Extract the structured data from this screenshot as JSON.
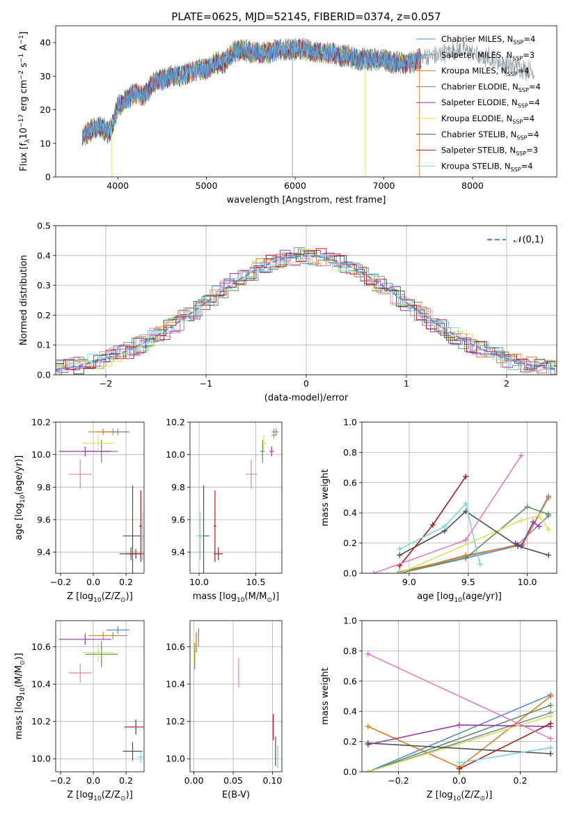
{
  "title": "PLATE=0625, MJD=52145, FIBERID=0374, z=0.057",
  "colors": {
    "chabrier_miles": "#5b8bd6",
    "salpeter_miles": "#7f8f95",
    "kroupa_miles": "#e07d24",
    "chabrier_elodie": "#5e8e5e",
    "salpeter_elodie": "#9939a8",
    "kroupa_elodie": "#d8e05a",
    "chabrier_stelib": "#4f4f4f",
    "salpeter_stelib": "#b01818",
    "kroupa_stelib": "#77d5dd",
    "pink": "#e37dbf",
    "normal": "#5b8bd6"
  },
  "chart_data": [
    {
      "type": "line",
      "name": "spectrum",
      "xlabel": "wavelength [Angstrom, rest frame]",
      "ylabel": "Flux [f_λ 10^-17 erg cm^-2 s^-1 A^-1]",
      "xlim": [
        3300,
        8950
      ],
      "ylim": [
        0,
        45
      ],
      "xticks": [
        4000,
        5000,
        6000,
        7000,
        8000
      ],
      "yticks": [
        0,
        10,
        20,
        30,
        40
      ],
      "legend": "top-right",
      "series": [
        {
          "name": "Chabrier MILES, N_SSP=4",
          "color": "#5b8bd6"
        },
        {
          "name": "Salpeter MILES, N_SSP=3",
          "color": "#7f8f95"
        },
        {
          "name": "Kroupa MILES, N_SSP=4",
          "color": "#e07d24"
        },
        {
          "name": "Chabrier ELODIE, N_SSP=4",
          "color": "#5e8e5e"
        },
        {
          "name": "Salpeter ELODIE, N_SSP=4",
          "color": "#9939a8"
        },
        {
          "name": "Kroupa ELODIE, N_SSP=4",
          "color": "#d8e05a"
        },
        {
          "name": "Chabrier STELIB, N_SSP=4",
          "color": "#4f4f4f"
        },
        {
          "name": "Salpeter STELIB, N_SSP=3",
          "color": "#b01818"
        },
        {
          "name": "Kroupa STELIB, N_SSP=4",
          "color": "#77d5dd"
        }
      ],
      "continuum": {
        "x": [
          3600,
          3700,
          3800,
          3900,
          3950,
          4000,
          4100,
          4200,
          4300,
          4400,
          4500,
          4600,
          4700,
          4800,
          4900,
          5000,
          5100,
          5200,
          5300,
          5400,
          5500,
          5600,
          5700,
          5800,
          5900,
          6000,
          6100,
          6200,
          6300,
          6400,
          6500,
          6600,
          6700,
          6800,
          6900,
          7000,
          7100,
          7200,
          7300,
          7400,
          7500,
          7600,
          7700,
          7800,
          7900,
          8000,
          8100,
          8200,
          8300,
          8400,
          8500,
          8600,
          8700
        ],
        "y": [
          12,
          14,
          15,
          13,
          16,
          21,
          23,
          25,
          24,
          28,
          29,
          30,
          30,
          31,
          32,
          32,
          34,
          34,
          37,
          38,
          37,
          37,
          37,
          38,
          38,
          38,
          38,
          37,
          37,
          37,
          36,
          36,
          35,
          35,
          35,
          35,
          34,
          34,
          34,
          35,
          36,
          36,
          37,
          38,
          38,
          37,
          35,
          36,
          34,
          33,
          33,
          32,
          31
        ]
      }
    },
    {
      "type": "line",
      "name": "residual histogram",
      "xlabel": "(data-model)/error",
      "ylabel": "Normed distribution",
      "xlim": [
        -2.5,
        2.5
      ],
      "ylim": [
        0,
        0.5
      ],
      "xticks": [
        -2,
        -1,
        0,
        1,
        2
      ],
      "yticks": [
        0.0,
        0.1,
        0.2,
        0.3,
        0.4,
        0.5
      ],
      "legend": "top-right",
      "series": [
        {
          "name": "𝒩(0,1)",
          "color": "#5b8bd6",
          "style": "dashed"
        }
      ]
    },
    {
      "type": "scatter",
      "name": "age vs Z",
      "xlabel": "Z [log10(Z/Z_⊙)]",
      "ylabel": "age  [log10(age/yr)]",
      "xlim": [
        -0.23,
        0.31
      ],
      "ylim": [
        9.27,
        10.2
      ],
      "xticks": [
        -0.2,
        0.0,
        0.2
      ],
      "yticks": [
        9.4,
        9.6,
        9.8,
        10.0,
        10.2
      ],
      "points": [
        {
          "x": 0.15,
          "y": 10.14,
          "xerr": 0.07,
          "yerr": 0.02,
          "color": "#5b8bd6"
        },
        {
          "x": 0.12,
          "y": 10.14,
          "xerr": 0.09,
          "yerr": 0.02,
          "color": "#7f8f95"
        },
        {
          "x": 0.06,
          "y": 10.14,
          "xerr": 0.09,
          "yerr": 0.02,
          "color": "#e07d24"
        },
        {
          "x": 0.05,
          "y": 10.02,
          "xerr": 0.1,
          "yerr": 0.07,
          "color": "#5e8e5e"
        },
        {
          "x": -0.05,
          "y": 10.02,
          "xerr": 0.16,
          "yerr": 0.03,
          "color": "#9939a8"
        },
        {
          "x": 0.03,
          "y": 10.07,
          "xerr": 0.1,
          "yerr": 0.05,
          "color": "#d8e05a"
        },
        {
          "x": 0.24,
          "y": 9.5,
          "xerr": 0.06,
          "yerr": 0.31,
          "color": "#4f4f4f"
        },
        {
          "x": 0.23,
          "y": 9.39,
          "xerr": 0.07,
          "yerr": 0.04,
          "color": "#4f4f4f"
        },
        {
          "x": 0.26,
          "y": 9.39,
          "xerr": 0.06,
          "yerr": 0.03,
          "color": "#b01818"
        },
        {
          "x": 0.29,
          "y": 9.56,
          "xerr": 0.01,
          "yerr": 0.22,
          "color": "#b01818"
        },
        {
          "x": 0.3,
          "y": 9.5,
          "xerr": 0.01,
          "yerr": 0.15,
          "color": "#77d5dd"
        },
        {
          "x": -0.08,
          "y": 9.88,
          "xerr": 0.07,
          "yerr": 0.09,
          "color": "#e37dbf"
        }
      ]
    },
    {
      "type": "scatter",
      "name": "age vs mass",
      "xlabel": "mass [log10(M/M_⊙)]",
      "ylabel": "",
      "xlim": [
        9.92,
        10.73
      ],
      "ylim": [
        9.27,
        10.2
      ],
      "xticks": [
        10.0,
        10.5
      ],
      "yticks": [
        9.4,
        9.6,
        9.8,
        10.0,
        10.2
      ],
      "points": [
        {
          "x": 10.68,
          "y": 10.14,
          "xerr": 0.02,
          "yerr": 0.02,
          "color": "#5b8bd6"
        },
        {
          "x": 10.66,
          "y": 10.14,
          "xerr": 0.02,
          "yerr": 0.02,
          "color": "#7f8f95"
        },
        {
          "x": 10.66,
          "y": 10.12,
          "xerr": 0.02,
          "yerr": 0.02,
          "color": "#e07d24"
        },
        {
          "x": 10.56,
          "y": 10.02,
          "xerr": 0.02,
          "yerr": 0.07,
          "color": "#5e8e5e"
        },
        {
          "x": 10.64,
          "y": 10.02,
          "xerr": 0.02,
          "yerr": 0.03,
          "color": "#9939a8"
        },
        {
          "x": 10.57,
          "y": 10.07,
          "xerr": 0.02,
          "yerr": 0.05,
          "color": "#d8e05a"
        },
        {
          "x": 10.04,
          "y": 9.5,
          "xerr": 0.05,
          "yerr": 0.31,
          "color": "#4f4f4f"
        },
        {
          "x": 10.17,
          "y": 9.39,
          "xerr": 0.04,
          "yerr": 0.04,
          "color": "#b01818"
        },
        {
          "x": 10.14,
          "y": 9.56,
          "xerr": 0.01,
          "yerr": 0.22,
          "color": "#b01818"
        },
        {
          "x": 10.01,
          "y": 9.5,
          "xerr": 0.03,
          "yerr": 0.15,
          "color": "#77d5dd"
        },
        {
          "x": 10.46,
          "y": 9.88,
          "xerr": 0.05,
          "yerr": 0.09,
          "color": "#e37dbf"
        }
      ]
    },
    {
      "type": "line",
      "name": "mass weight vs age",
      "xlabel": "age  [log10(age/yr)]",
      "ylabel": "mass weight",
      "xlim": [
        8.6,
        10.25
      ],
      "ylim": [
        0,
        1
      ],
      "xticks": [
        9.0,
        9.5,
        10.0
      ],
      "yticks": [
        0.0,
        0.2,
        0.4,
        0.6,
        0.8,
        1.0
      ],
      "series": [
        {
          "color": "#5b8bd6",
          "x": [
            8.92,
            9.48,
            9.96,
            10.18
          ],
          "y": [
            0.01,
            0.1,
            0.19,
            0.51
          ]
        },
        {
          "color": "#7f8f95",
          "x": [
            8.92,
            9.92,
            10.18
          ],
          "y": [
            0.01,
            0.19,
            0.38
          ]
        },
        {
          "color": "#e07d24",
          "x": [
            8.92,
            9.48,
            9.96,
            10.18
          ],
          "y": [
            0.0,
            0.12,
            0.19,
            0.5
          ]
        },
        {
          "color": "#5e8e5e",
          "x": [
            8.92,
            9.48,
            10.0,
            10.18
          ],
          "y": [
            0.0,
            0.1,
            0.44,
            0.39
          ]
        },
        {
          "color": "#9939a8",
          "x": [
            9.9,
            9.95,
            10.05,
            10.1
          ],
          "y": [
            0.2,
            0.18,
            0.34,
            0.31
          ]
        },
        {
          "color": "#d8e05a",
          "x": [
            8.92,
            9.95,
            10.1,
            10.18
          ],
          "y": [
            0.0,
            0.35,
            0.38,
            0.29
          ]
        },
        {
          "color": "#4f4f4f",
          "x": [
            8.92,
            9.3,
            9.48,
            9.92,
            10.18
          ],
          "y": [
            0.12,
            0.28,
            0.41,
            0.18,
            0.12
          ]
        },
        {
          "color": "#b01818",
          "x": [
            8.92,
            9.2,
            9.48
          ],
          "y": [
            0.05,
            0.32,
            0.64
          ]
        },
        {
          "color": "#77d5dd",
          "x": [
            8.92,
            9.3,
            9.48,
            9.6
          ],
          "y": [
            0.16,
            0.31,
            0.46,
            0.06
          ]
        },
        {
          "color": "#e37dbf",
          "x": [
            8.7,
            9.48,
            9.95
          ],
          "y": [
            0.0,
            0.22,
            0.78
          ]
        }
      ]
    },
    {
      "type": "scatter",
      "name": "mass vs Z",
      "xlabel": "Z [log10(Z/Z_⊙)]",
      "ylabel": "mass [log10(M/M_⊙)]",
      "xlim": [
        -0.23,
        0.31
      ],
      "ylim": [
        9.93,
        10.74
      ],
      "xticks": [
        -0.2,
        0.0,
        0.2
      ],
      "yticks": [
        10.0,
        10.2,
        10.4,
        10.6
      ],
      "points": [
        {
          "x": 0.15,
          "y": 10.69,
          "xerr": 0.07,
          "yerr": 0.02,
          "color": "#5b8bd6"
        },
        {
          "x": 0.12,
          "y": 10.66,
          "xerr": 0.09,
          "yerr": 0.02,
          "color": "#7f8f95"
        },
        {
          "x": 0.06,
          "y": 10.66,
          "xerr": 0.09,
          "yerr": 0.02,
          "color": "#e07d24"
        },
        {
          "x": 0.05,
          "y": 10.56,
          "xerr": 0.1,
          "yerr": 0.07,
          "color": "#5e8e5e"
        },
        {
          "x": -0.05,
          "y": 10.64,
          "xerr": 0.16,
          "yerr": 0.03,
          "color": "#9939a8"
        },
        {
          "x": 0.03,
          "y": 10.57,
          "xerr": 0.1,
          "yerr": 0.05,
          "color": "#d8e05a"
        },
        {
          "x": 0.24,
          "y": 10.04,
          "xerr": 0.06,
          "yerr": 0.05,
          "color": "#4f4f4f"
        },
        {
          "x": 0.26,
          "y": 10.17,
          "xerr": 0.07,
          "yerr": 0.04,
          "color": "#b01818"
        },
        {
          "x": 0.29,
          "y": 10.01,
          "xerr": 0.02,
          "yerr": 0.03,
          "color": "#77d5dd"
        },
        {
          "x": -0.08,
          "y": 10.46,
          "xerr": 0.07,
          "yerr": 0.05,
          "color": "#e37dbf"
        }
      ]
    },
    {
      "type": "scatter",
      "name": "mass vs E(B-V)",
      "xlabel": "E(B-V)",
      "ylabel": "",
      "xlim": [
        -0.005,
        0.112
      ],
      "ylim": [
        9.93,
        10.74
      ],
      "xticks": [
        0.0,
        0.05,
        0.1
      ],
      "yticks": [
        10.0,
        10.2,
        10.4,
        10.6
      ],
      "points": [
        {
          "x": 0.006,
          "y": 10.65,
          "yerr": 0.05,
          "color": "#5b8bd6"
        },
        {
          "x": 0.003,
          "y": 10.62,
          "yerr": 0.05,
          "color": "#9939a8"
        },
        {
          "x": 0.003,
          "y": 10.63,
          "yerr": 0.05,
          "color": "#e07d24"
        },
        {
          "x": 0.001,
          "y": 10.55,
          "yerr": 0.07,
          "color": "#5e8e5e"
        },
        {
          "x": 0.0,
          "y": 10.57,
          "yerr": 0.06,
          "color": "#d8e05a"
        },
        {
          "x": 0.057,
          "y": 10.46,
          "yerr": 0.08,
          "color": "#e37dbf"
        },
        {
          "x": 0.101,
          "y": 10.17,
          "yerr": 0.07,
          "color": "#b01818"
        },
        {
          "x": 0.104,
          "y": 10.04,
          "yerr": 0.08,
          "color": "#4f4f4f"
        },
        {
          "x": 0.107,
          "y": 10.01,
          "yerr": 0.06,
          "color": "#77d5dd"
        }
      ]
    },
    {
      "type": "line",
      "name": "mass weight vs Z",
      "xlabel": "Z [log10(Z/Z_⊙)]",
      "ylabel": "mass weight",
      "xlim": [
        -0.32,
        0.32
      ],
      "ylim": [
        0,
        1
      ],
      "xticks": [
        -0.2,
        0.0,
        0.2
      ],
      "yticks": [
        0.0,
        0.2,
        0.4,
        0.6,
        0.8,
        1.0
      ],
      "series": [
        {
          "color": "#5b8bd6",
          "x": [
            -0.3,
            0.3
          ],
          "y": [
            0.0,
            0.51
          ]
        },
        {
          "color": "#7f8f95",
          "x": [
            -0.3,
            0.3
          ],
          "y": [
            0.0,
            0.39
          ]
        },
        {
          "color": "#e07d24",
          "x": [
            -0.3,
            0.0,
            0.3
          ],
          "y": [
            0.3,
            0.03,
            0.5
          ]
        },
        {
          "color": "#5e8e5e",
          "x": [
            -0.3,
            0.3
          ],
          "y": [
            0.0,
            0.44
          ]
        },
        {
          "color": "#9939a8",
          "x": [
            -0.3,
            0.0,
            0.3
          ],
          "y": [
            0.18,
            0.31,
            0.3
          ]
        },
        {
          "color": "#d8e05a",
          "x": [
            -0.3,
            0.3
          ],
          "y": [
            0.0,
            0.37
          ]
        },
        {
          "color": "#4f4f4f",
          "x": [
            -0.3,
            0.3
          ],
          "y": [
            0.19,
            0.12
          ]
        },
        {
          "color": "#b01818",
          "x": [
            0.0,
            0.3
          ],
          "y": [
            0.02,
            0.32
          ]
        },
        {
          "color": "#77d5dd",
          "x": [
            0.0,
            0.3
          ],
          "y": [
            0.06,
            0.16
          ]
        },
        {
          "color": "#e37dbf",
          "x": [
            -0.3,
            0.3
          ],
          "y": [
            0.78,
            0.22
          ]
        }
      ]
    }
  ]
}
